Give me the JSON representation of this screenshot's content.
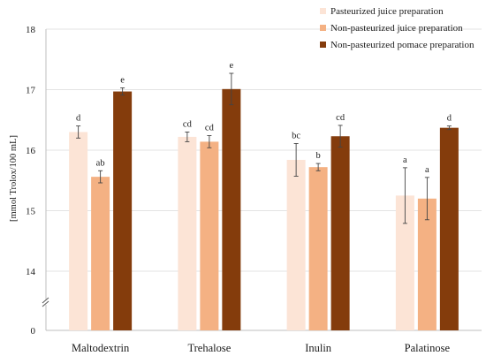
{
  "chart_data": {
    "type": "bar",
    "categories": [
      "Maltodextrin",
      "Trehalose",
      "Inulin",
      "Palatinose"
    ],
    "series": [
      {
        "name": "Pasteurized juice preparation",
        "color": "#fce4d6",
        "values": [
          16.3,
          16.22,
          15.84,
          15.25
        ],
        "errors": [
          0.1,
          0.08,
          0.27,
          0.46
        ],
        "labels": [
          "d",
          "cd",
          "bc",
          "a"
        ]
      },
      {
        "name": "Non-pasteurized juice preparation",
        "color": "#f4b183",
        "values": [
          15.56,
          16.14,
          15.72,
          15.2
        ],
        "errors": [
          0.1,
          0.1,
          0.06,
          0.35
        ],
        "labels": [
          "ab",
          "cd",
          "b",
          "a"
        ]
      },
      {
        "name": "Non-pasteurized pomace preparation",
        "color": "#843c0c",
        "values": [
          16.97,
          17.01,
          16.23,
          16.37
        ],
        "errors": [
          0.06,
          0.26,
          0.18,
          0.03
        ],
        "labels": [
          "e",
          "e",
          "cd",
          "d"
        ]
      }
    ],
    "ylabel": "[mmol Trolox/100 mL]",
    "y_ticks": [
      {
        "value": 0,
        "label": "0"
      },
      {
        "value": 14,
        "label": "14"
      },
      {
        "value": 15,
        "label": "15"
      },
      {
        "value": 16,
        "label": "16"
      },
      {
        "value": 17,
        "label": "17"
      },
      {
        "value": 18,
        "label": "18"
      }
    ],
    "ylim": [
      14,
      18
    ],
    "y_axis_break": true,
    "grid": true,
    "legend_position": "top-right"
  }
}
